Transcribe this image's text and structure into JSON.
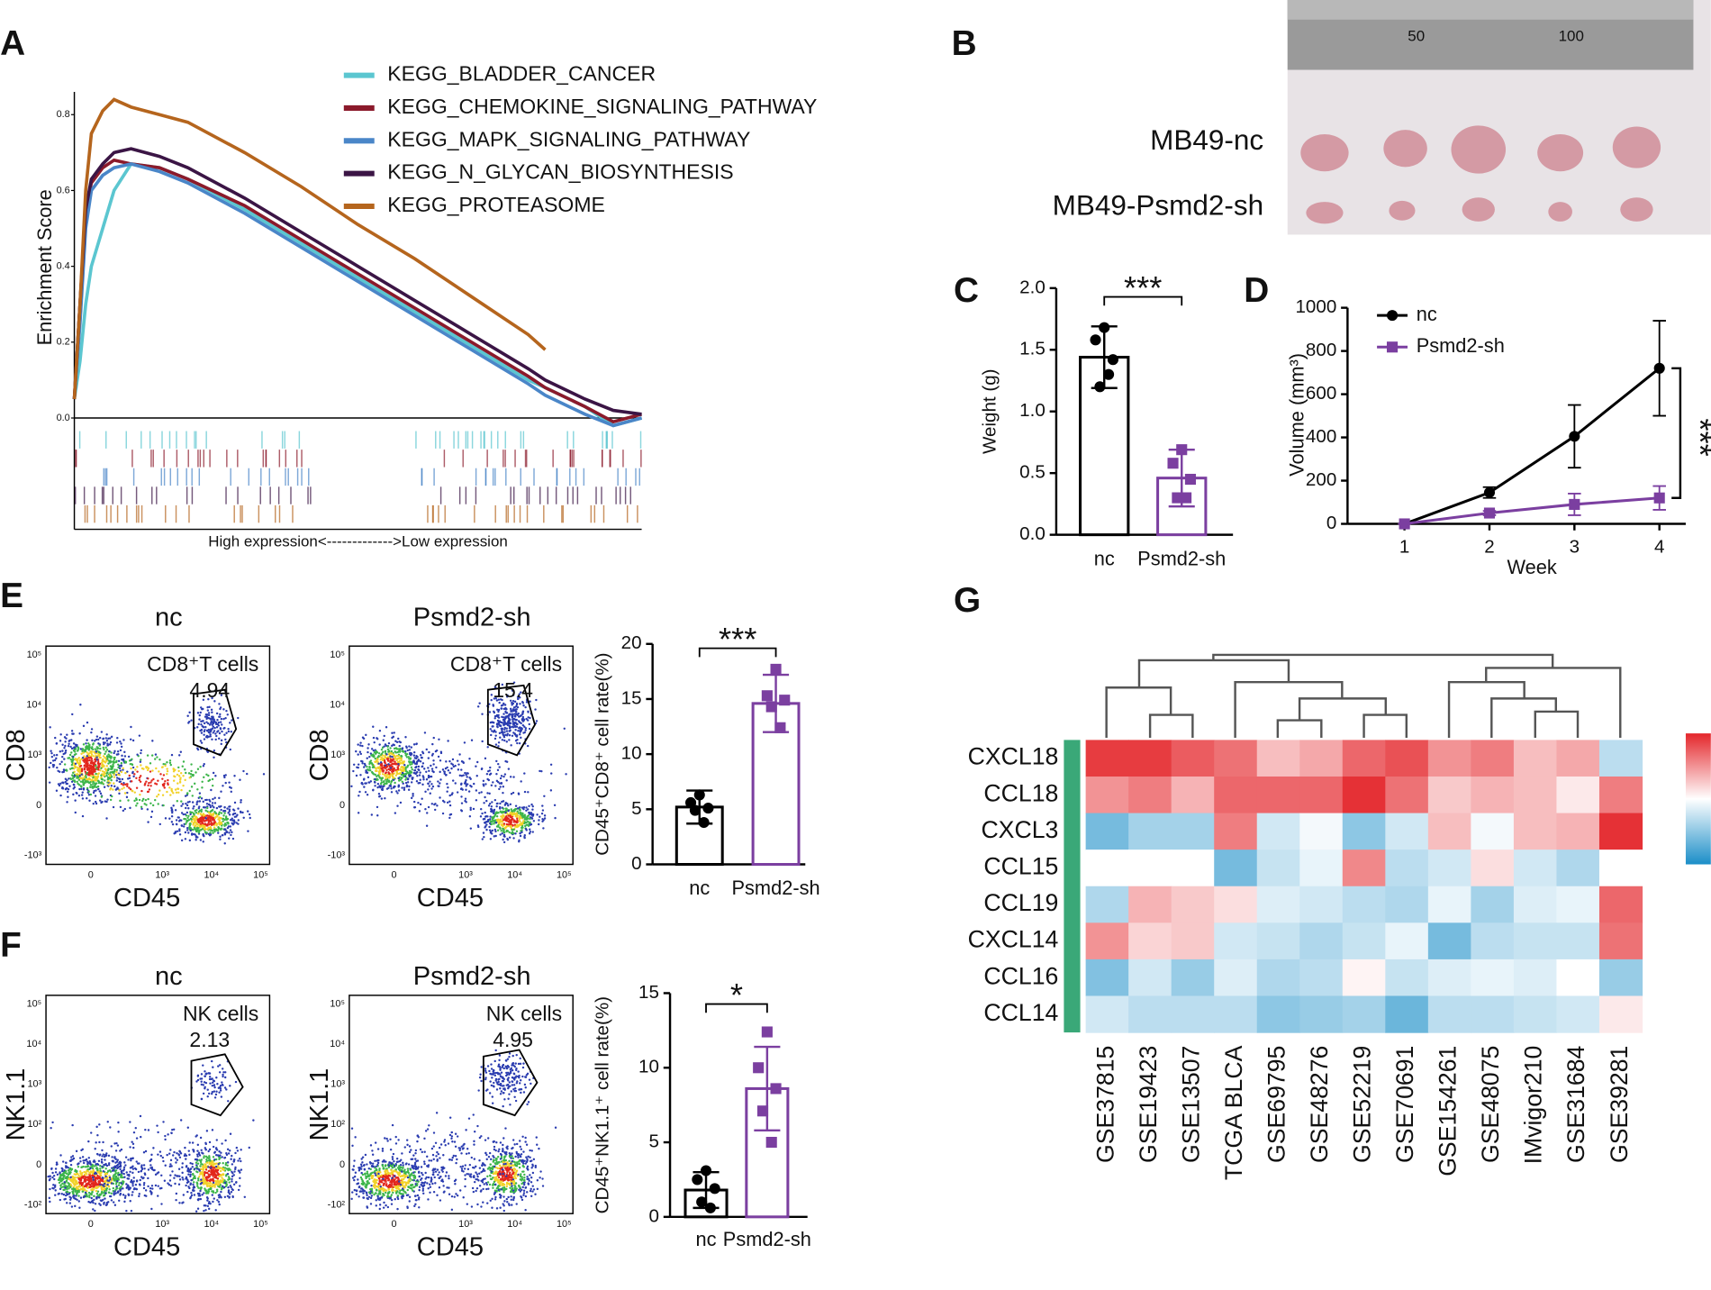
{
  "figure": {
    "panel_labels": [
      "A",
      "B",
      "C",
      "D",
      "E",
      "F",
      "G"
    ],
    "photo_labels": [
      "MB49-nc",
      "MB49-Psmd2-sh"
    ],
    "ruler_labels": [
      "50",
      "100"
    ],
    "flow_plots": [
      {
        "title": "nc",
        "gate_label": "CD8⁺T cells",
        "gate_value": "4.94",
        "xlabel": "CD45",
        "ylabel": "CD8",
        "xticks": [
          "0",
          "10³",
          "10⁴",
          "10⁵"
        ],
        "yticks": [
          "10⁵",
          "10⁴",
          "10³",
          "0",
          "-10³"
        ]
      },
      {
        "title": "Psmd2-sh",
        "gate_label": "CD8⁺T cells",
        "gate_value": "15.4",
        "xlabel": "CD45",
        "ylabel": "CD8",
        "xticks": [
          "0",
          "10³",
          "10⁴",
          "10⁵"
        ],
        "yticks": [
          "10⁵",
          "10⁴",
          "10³",
          "0",
          "-10³"
        ]
      },
      {
        "title": "nc",
        "gate_label": "NK cells",
        "gate_value": "2.13",
        "xlabel": "CD45",
        "ylabel": "NK1.1",
        "xticks": [
          "0",
          "10³",
          "10⁴",
          "10⁵"
        ],
        "yticks": [
          "10⁵",
          "10⁴",
          "10³",
          "10²",
          "0",
          "-10²"
        ]
      },
      {
        "title": "Psmd2-sh",
        "gate_label": "NK cells",
        "gate_value": "4.95",
        "xlabel": "CD45",
        "ylabel": "NK1.1",
        "xticks": [
          "0",
          "10³",
          "10⁴",
          "10⁵"
        ],
        "yticks": [
          "10⁵",
          "10⁴",
          "10³",
          "10²",
          "0",
          "-10²"
        ]
      }
    ]
  },
  "chart_data": [
    {
      "type": "line",
      "ylabel": "Enrichment Score",
      "xlabel": "High expression<------------->Low expression",
      "x": [
        0,
        1,
        2,
        3,
        5,
        7,
        10,
        15,
        20,
        30,
        40,
        50,
        60,
        70,
        80,
        83,
        90,
        95,
        100
      ],
      "xlim": [
        0,
        100
      ],
      "ylim": [
        0,
        0.86
      ],
      "yticks": [
        {
          "value": 0,
          "label": "0.0"
        },
        0.2,
        0.4,
        0.6,
        0.8
      ],
      "series": [
        {
          "name": "KEGG_BLADDER_CANCER",
          "color": "#5bc6d0",
          "values": [
            0.05,
            0.15,
            0.3,
            0.4,
            0.5,
            0.6,
            0.67,
            0.66,
            0.63,
            0.55,
            0.46,
            0.37,
            0.28,
            0.19,
            0.1,
            0.08,
            0.03,
            -0.02,
            0.0
          ]
        },
        {
          "name": "KEGG_CHEMOKINE_SIGNALING_PATHWAY",
          "color": "#8b1a2b",
          "values": [
            0.05,
            0.3,
            0.55,
            0.62,
            0.66,
            0.68,
            0.67,
            0.66,
            0.63,
            0.56,
            0.47,
            0.38,
            0.29,
            0.2,
            0.11,
            0.08,
            0.03,
            -0.01,
            0.01
          ]
        },
        {
          "name": "KEGG_MAPK_SIGNALING_PATHWAY",
          "color": "#4a86c8",
          "values": [
            0.05,
            0.25,
            0.5,
            0.6,
            0.64,
            0.66,
            0.67,
            0.65,
            0.62,
            0.54,
            0.45,
            0.36,
            0.27,
            0.18,
            0.09,
            0.06,
            0.01,
            -0.02,
            0.0
          ]
        },
        {
          "name": "KEGG_N_GLYCAN_BIOSYNTHESIS",
          "color": "#3b1545",
          "values": [
            0.05,
            0.3,
            0.55,
            0.63,
            0.67,
            0.7,
            0.71,
            0.69,
            0.66,
            0.58,
            0.49,
            0.4,
            0.31,
            0.22,
            0.13,
            0.1,
            0.05,
            0.02,
            0.01
          ]
        },
        {
          "name": "KEGG_PROTEASOME",
          "color": "#b5651d",
          "values": [
            0.05,
            0.3,
            0.6,
            0.75,
            0.81,
            0.84,
            0.82,
            0.8,
            0.78,
            0.7,
            0.61,
            0.51,
            0.42,
            0.32,
            0.22,
            0.18,
            null,
            null,
            null
          ]
        }
      ]
    },
    {
      "type": "bar",
      "ylabel": "Weight (g)",
      "annotation": "***",
      "categories": [
        "nc",
        "Psmd2-sh"
      ],
      "values": [
        1.44,
        0.46
      ],
      "errors": [
        0.25,
        0.23
      ],
      "points": [
        [
          1.68,
          1.58,
          1.42,
          1.2,
          1.3
        ],
        [
          0.69,
          0.58,
          0.45,
          0.3,
          0.3
        ]
      ],
      "colors": [
        "#000000",
        "#7b3fa0"
      ],
      "markers": [
        "circle",
        "square"
      ],
      "ylim": [
        0,
        2.0
      ],
      "yticks": [
        {
          "value": 0,
          "label": "0.0"
        },
        0.5,
        {
          "value": 1,
          "label": "1.0"
        },
        1.5,
        {
          "value": 2,
          "label": "2.0"
        }
      ]
    },
    {
      "type": "line",
      "xlabel": "Week",
      "ylabel": "Volume (mm³)",
      "annotation": "***",
      "x": [
        1,
        2,
        3,
        4
      ],
      "xlim": [
        0.33,
        4.31
      ],
      "xticks": [
        1,
        2,
        3,
        4
      ],
      "ylim": [
        0,
        1000
      ],
      "yticks": [
        0,
        200,
        400,
        600,
        800,
        1000
      ],
      "series": [
        {
          "name": "nc",
          "color": "#000000",
          "marker": "circle",
          "values": [
            0,
            145,
            405,
            720
          ],
          "errors": [
            0,
            25,
            145,
            220
          ]
        },
        {
          "name": "Psmd2-sh",
          "color": "#7b3fa0",
          "marker": "square",
          "values": [
            0,
            50,
            90,
            120
          ],
          "errors": [
            0,
            10,
            50,
            55
          ]
        }
      ]
    },
    {
      "type": "bar",
      "ylabel": "CD45⁺CD8⁺ cell rate(%)",
      "annotation": "***",
      "categories": [
        "nc",
        "Psmd2-sh"
      ],
      "values": [
        5.2,
        14.6
      ],
      "errors": [
        1.5,
        2.6
      ],
      "points": [
        [
          6.3,
          5.6,
          5.1,
          4.9,
          3.8
        ],
        [
          17.7,
          15.3,
          14.9,
          14.3,
          12.4
        ]
      ],
      "colors": [
        "#000000",
        "#7b3fa0"
      ],
      "markers": [
        "circle",
        "square"
      ],
      "ylim": [
        0,
        20
      ],
      "yticks": [
        0,
        5,
        10,
        15,
        20
      ]
    },
    {
      "type": "bar",
      "ylabel": "CD45⁺NK1.1⁺ cell rate(%)",
      "annotation": "*",
      "categories": [
        "nc",
        "Psmd2-sh"
      ],
      "values": [
        1.8,
        8.6
      ],
      "errors": [
        1.2,
        2.8
      ],
      "points": [
        [
          3.1,
          2.5,
          1.9,
          1.0,
          0.6
        ],
        [
          12.4,
          10.0,
          8.6,
          7.1,
          5.0
        ]
      ],
      "colors": [
        "#000000",
        "#7b3fa0"
      ],
      "markers": [
        "circle",
        "square"
      ],
      "ylim": [
        0,
        15
      ],
      "yticks": [
        0,
        5,
        10,
        15
      ]
    },
    {
      "type": "heatmap",
      "rows": [
        "CXCL18",
        "CCL18",
        "CXCL3",
        "CCL15",
        "CCL19",
        "CXCL14",
        "CCL16",
        "CCL14"
      ],
      "columns": [
        "GSE37815",
        "GSE19423",
        "GSE13507",
        "TCGA BLCA",
        "GSE69795",
        "GSE48276",
        "GSE52219",
        "GSE70691",
        "GSE154261",
        "GSE48075",
        "IMvigor210",
        "GSE31684",
        "GSE39281"
      ],
      "zlim": [
        -1,
        1
      ],
      "colors": [
        "#1b8ec8",
        "#ffffff",
        "#e4262b"
      ],
      "values": [
        [
          0.9,
          0.9,
          0.75,
          0.65,
          0.3,
          0.4,
          0.7,
          0.8,
          0.5,
          0.6,
          0.3,
          0.4,
          -0.3
        ],
        [
          0.5,
          0.6,
          0.35,
          0.7,
          0.7,
          0.7,
          0.95,
          0.65,
          0.25,
          0.35,
          0.3,
          0.1,
          0.6
        ],
        [
          -0.6,
          -0.4,
          -0.4,
          0.6,
          -0.2,
          -0.05,
          -0.5,
          -0.2,
          0.3,
          -0.05,
          0.3,
          0.35,
          0.95
        ],
        [
          null,
          null,
          null,
          -0.6,
          -0.25,
          -0.1,
          0.55,
          -0.3,
          -0.2,
          0.15,
          -0.2,
          -0.35,
          null
        ],
        [
          -0.35,
          0.35,
          0.25,
          0.15,
          -0.15,
          -0.2,
          -0.3,
          -0.35,
          -0.1,
          -0.4,
          -0.15,
          -0.1,
          0.7
        ],
        [
          0.5,
          0.2,
          0.25,
          -0.2,
          -0.25,
          -0.35,
          -0.25,
          -0.1,
          -0.6,
          -0.3,
          -0.25,
          -0.25,
          0.65
        ],
        [
          -0.55,
          -0.2,
          -0.45,
          -0.15,
          -0.35,
          -0.3,
          0.05,
          -0.25,
          -0.15,
          -0.1,
          -0.15,
          0.0,
          -0.45
        ],
        [
          -0.2,
          -0.3,
          -0.3,
          -0.3,
          -0.5,
          -0.45,
          -0.4,
          -0.65,
          -0.3,
          -0.3,
          -0.25,
          -0.2,
          0.1
        ]
      ]
    }
  ]
}
